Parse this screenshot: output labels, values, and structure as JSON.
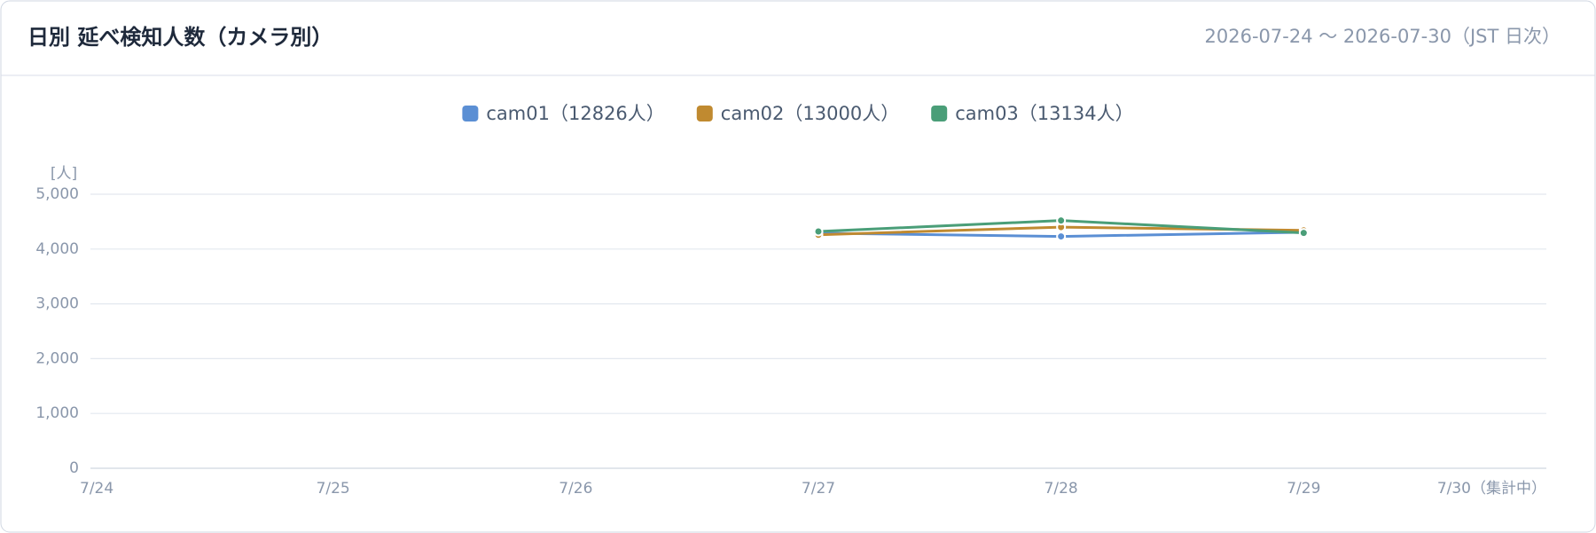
{
  "chart_data": {
    "type": "line",
    "title": "日別 延べ検知人数（カメラ別）",
    "subtitle": "2026-07-24 〜 2026-07-30（JST 日次）",
    "y_unit": "[人]",
    "categories": [
      "7/24",
      "7/25",
      "7/26",
      "7/27",
      "7/28",
      "7/29",
      "7/30（集計中）"
    ],
    "series": [
      {
        "name": "cam01（12826人）",
        "color": "#5b8fd4",
        "values": [
          null,
          null,
          null,
          4290,
          4230,
          4306,
          null
        ]
      },
      {
        "name": "cam02（13000人）",
        "color": "#c08a30",
        "values": [
          null,
          null,
          null,
          4260,
          4400,
          4340,
          null
        ]
      },
      {
        "name": "cam03（13134人）",
        "color": "#4a9e78",
        "values": [
          null,
          null,
          null,
          4320,
          4520,
          4294,
          null
        ]
      }
    ],
    "ylim": [
      0,
      5000
    ],
    "yticks": [
      0,
      {
        "value": 1000,
        "label": "1,000"
      },
      {
        "value": 2000,
        "label": "2,000"
      },
      {
        "value": 3000,
        "label": "3,000"
      },
      {
        "value": 4000,
        "label": "4,000"
      },
      {
        "value": 5000,
        "label": "5,000"
      }
    ],
    "grid": true
  }
}
